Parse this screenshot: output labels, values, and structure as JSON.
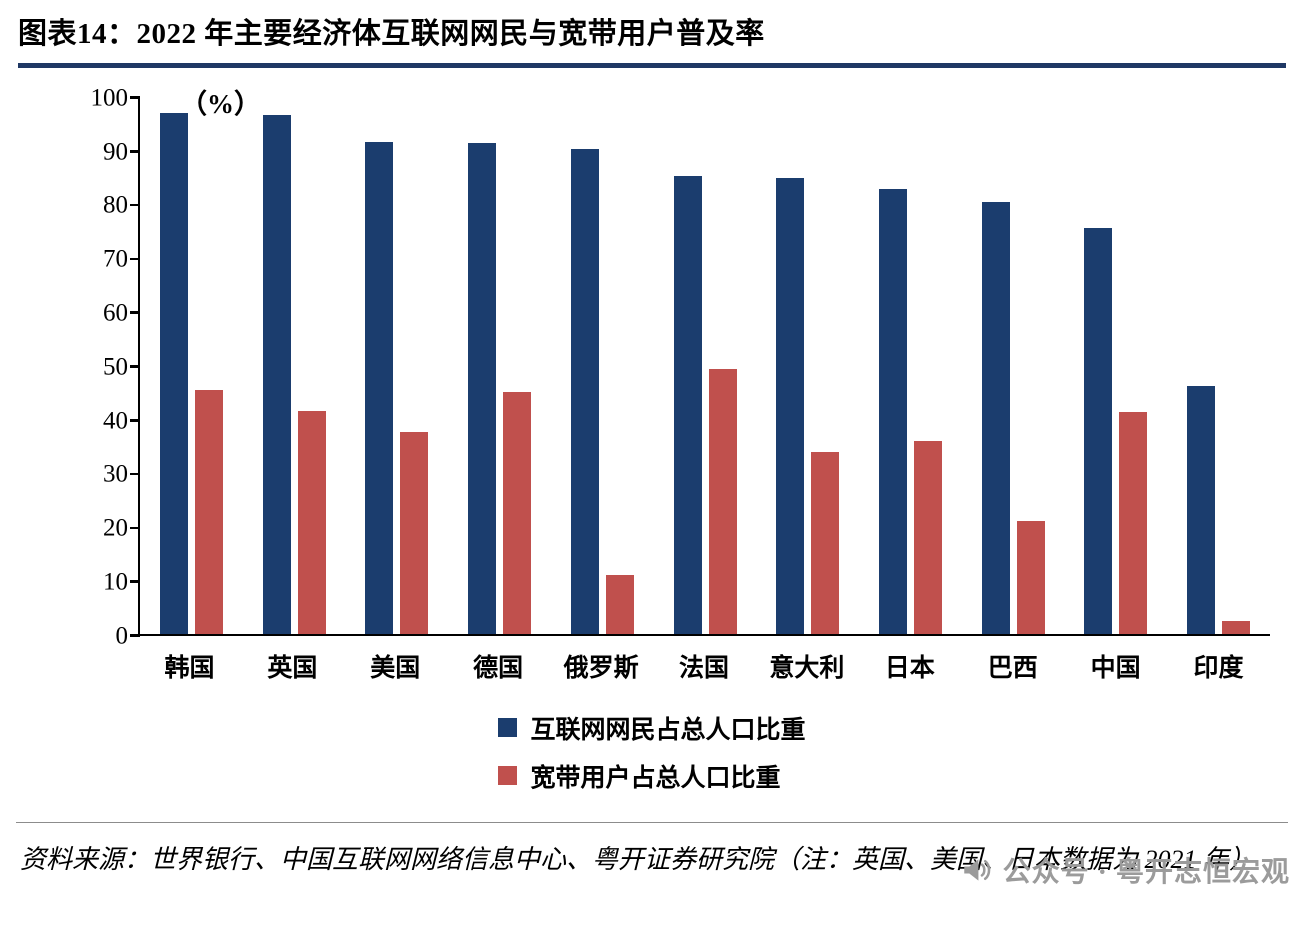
{
  "page": {
    "title": "图表14：2022 年主要经济体互联网网民与宽带用户普及率",
    "footer_source": "资料来源：世界银行、中国互联网网络信息中心、粤开证券研究院（注：英国、美国、日本数据为 2021 年）",
    "watermark": "公众号 · 粤开志恒宏观",
    "accent_color": "#1F3864"
  },
  "chart_data": {
    "type": "bar",
    "title": "2022 年主要经济体互联网网民与宽带用户普及率",
    "unit_label": "（%）",
    "categories": [
      "韩国",
      "英国",
      "美国",
      "德国",
      "俄罗斯",
      "法国",
      "意大利",
      "日本",
      "巴西",
      "中国",
      "印度"
    ],
    "series": [
      {
        "name": "互联网网民占总人口比重",
        "color": "#1B3D6E",
        "values": [
          97.2,
          96.7,
          91.8,
          91.6,
          90.4,
          85.3,
          85.0,
          82.9,
          80.5,
          75.6,
          46.3
        ]
      },
      {
        "name": "宽带用户占总人口比重",
        "color": "#C0504D",
        "values": [
          45.4,
          41.5,
          37.7,
          45.1,
          11.0,
          49.4,
          33.9,
          36.0,
          21.1,
          41.3,
          2.4
        ]
      }
    ],
    "ylim": [
      0,
      100
    ],
    "yticks": [
      0,
      10,
      20,
      30,
      40,
      50,
      60,
      70,
      80,
      90,
      100
    ],
    "grid": false,
    "legend_position": "bottom"
  }
}
